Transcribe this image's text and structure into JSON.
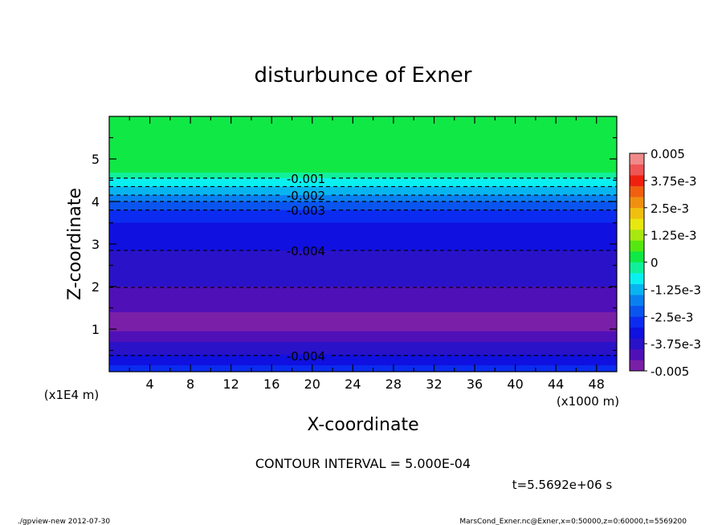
{
  "chart_data": {
    "type": "heatmap",
    "title": "disturbunce of Exner",
    "xlabel": "X-coordinate",
    "ylabel": "Z-coordinate",
    "x_unit_label": "(x1000 m)",
    "y_unit_label": "(x1E4 m)",
    "xlim": [
      0,
      50
    ],
    "ylim": [
      0,
      6
    ],
    "x_ticks": [
      "4",
      "8",
      "12",
      "16",
      "20",
      "24",
      "28",
      "32",
      "36",
      "40",
      "44",
      "48"
    ],
    "y_ticks": [
      "1",
      "2",
      "3",
      "4",
      "5"
    ],
    "levels": [
      -0.005,
      -0.0045,
      -0.004,
      -0.0035,
      -0.003,
      -0.0025,
      -0.002,
      -0.0015,
      -0.001,
      -0.0005,
      0,
      0.0005,
      0.001,
      0.0015,
      0.002,
      0.0025,
      0.003,
      0.0035,
      0.004,
      0.0045,
      0.005
    ],
    "level_colors": [
      "#7a1fa8",
      "#5010b8",
      "#2a12c8",
      "#1010e0",
      "#0b2cf0",
      "#0a55f0",
      "#0a80f0",
      "#08b4f0",
      "#0af0f0",
      "#10f09a",
      "#10e845",
      "#55e810",
      "#a8e810",
      "#e8e810",
      "#f0c010",
      "#f09010",
      "#f06010",
      "#f02010",
      "#f05555",
      "#f08a8a"
    ],
    "colorbar_labels": [
      "0.005",
      "3.75e-3",
      "2.5e-3",
      "1.25e-3",
      "0",
      "-1.25e-3",
      "-2.5e-3",
      "-3.75e-3",
      "-0.005"
    ],
    "colorbar_label_values": [
      0.005,
      0.00375,
      0.0025,
      0.00125,
      0,
      -0.00125,
      -0.0025,
      -0.00375,
      -0.005
    ],
    "bands": [
      {
        "z0": 4.68,
        "z1": 6.0,
        "color": "#10e845"
      },
      {
        "z0": 4.55,
        "z1": 4.68,
        "color": "#10f09a"
      },
      {
        "z0": 4.35,
        "z1": 4.55,
        "color": "#0af0f0"
      },
      {
        "z0": 4.15,
        "z1": 4.35,
        "color": "#08b4f0"
      },
      {
        "z0": 4.0,
        "z1": 4.15,
        "color": "#0a80f0"
      },
      {
        "z0": 3.8,
        "z1": 4.0,
        "color": "#0a55f0"
      },
      {
        "z0": 3.5,
        "z1": 3.8,
        "color": "#0b2cf0"
      },
      {
        "z0": 2.85,
        "z1": 3.5,
        "color": "#1010e0"
      },
      {
        "z0": 2.0,
        "z1": 2.85,
        "color": "#2a12c8"
      },
      {
        "z0": 1.4,
        "z1": 2.0,
        "color": "#5010b8"
      },
      {
        "z0": 0.95,
        "z1": 1.4,
        "color": "#7a1fa8"
      },
      {
        "z0": 0.7,
        "z1": 0.95,
        "color": "#5010b8"
      },
      {
        "z0": 0.4,
        "z1": 0.7,
        "color": "#2a12c8"
      },
      {
        "z0": 0.15,
        "z1": 0.4,
        "color": "#1010e0"
      },
      {
        "z0": 0.0,
        "z1": 0.15,
        "color": "#0b2cf0"
      }
    ],
    "contours": [
      {
        "label": "-0.001",
        "z": 4.55,
        "labeled": true
      },
      {
        "label": "",
        "z": 4.35,
        "labeled": false
      },
      {
        "label": "-0.002",
        "z": 4.15,
        "labeled": true
      },
      {
        "label": "",
        "z": 4.0,
        "labeled": false
      },
      {
        "label": "-0.003",
        "z": 3.8,
        "labeled": true
      },
      {
        "label": "-0.004",
        "z": 2.85,
        "labeled": true
      },
      {
        "label": "",
        "z": 1.98,
        "labeled": false
      },
      {
        "label": "-0.004",
        "z": 0.38,
        "labeled": true
      }
    ]
  },
  "annotations": {
    "contour_interval": "CONTOUR INTERVAL = 5.000E-04",
    "time": "t=5.5692e+06 s",
    "footer_left": "./gpview-new  2012-07-30",
    "footer_right": "MarsCond_Exner.nc@Exner,x=0:50000,z=0:60000,t=5569200"
  }
}
